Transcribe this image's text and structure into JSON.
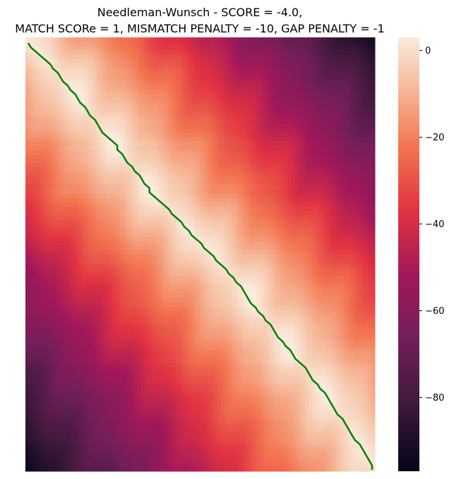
{
  "chart_data": {
    "type": "heatmap",
    "title": {
      "line1": "Needleman-Wunsch - SCORE = -4.0,",
      "line2": "MATCH SCORe = 1, MISMATCH PENALTY = -10, GAP PENALTY = -1"
    },
    "xlabel": "",
    "ylabel": "",
    "rows": 100,
    "cols": 100,
    "colorbar": {
      "range": [
        -97,
        3
      ],
      "ticks": [
        0,
        -20,
        -40,
        -60,
        -80
      ],
      "tick_labels": [
        "0",
        "−20",
        "−40",
        "−60",
        "−80"
      ],
      "colormap": "rocket"
    },
    "matrix_description_values": {
      "top_left": 3,
      "top_right": -97,
      "bottom_left": -97,
      "bottom_right": -4
    },
    "alignment_path": {
      "color": "#008000",
      "points": [
        [
          0,
          0
        ],
        [
          1,
          1
        ],
        [
          2,
          3
        ],
        [
          3,
          5
        ],
        [
          4,
          7
        ],
        [
          5,
          9
        ],
        [
          6,
          10
        ],
        [
          7,
          12
        ],
        [
          8,
          13
        ],
        [
          9,
          14
        ],
        [
          10,
          16
        ],
        [
          11,
          17
        ],
        [
          12,
          19
        ],
        [
          13,
          20
        ],
        [
          14,
          21
        ],
        [
          15,
          23
        ],
        [
          16,
          24
        ],
        [
          17,
          25
        ],
        [
          18,
          27
        ],
        [
          19,
          28
        ],
        [
          20,
          29
        ],
        [
          21,
          30
        ],
        [
          22,
          32
        ],
        [
          23,
          34
        ],
        [
          24,
          36
        ],
        [
          25,
          36
        ],
        [
          26,
          38
        ],
        [
          27,
          39
        ],
        [
          28,
          40
        ],
        [
          29,
          42
        ],
        [
          30,
          43
        ],
        [
          31,
          45
        ],
        [
          32,
          46
        ],
        [
          33,
          47
        ],
        [
          34,
          49
        ],
        [
          35,
          49
        ],
        [
          36,
          51
        ],
        [
          37,
          53
        ],
        [
          38,
          55
        ],
        [
          39,
          57
        ],
        [
          40,
          58
        ],
        [
          41,
          60
        ],
        [
          42,
          62
        ],
        [
          43,
          63
        ],
        [
          44,
          65
        ],
        [
          45,
          66
        ],
        [
          46,
          68
        ],
        [
          47,
          70
        ],
        [
          48,
          71
        ],
        [
          49,
          73
        ],
        [
          50,
          75
        ],
        [
          51,
          76
        ],
        [
          52,
          78
        ],
        [
          53,
          80
        ],
        [
          54,
          81
        ],
        [
          55,
          83
        ],
        [
          56,
          84
        ],
        [
          57,
          86
        ],
        [
          58,
          87
        ],
        [
          59,
          88
        ],
        [
          60,
          89
        ],
        [
          61,
          90
        ],
        [
          62,
          92
        ],
        [
          63,
          93
        ],
        [
          64,
          95
        ],
        [
          65,
          96
        ],
        [
          66,
          98
        ],
        [
          67,
          99
        ],
        [
          68,
          100
        ],
        [
          69,
          101
        ],
        [
          70,
          103
        ],
        [
          71,
          104
        ],
        [
          72,
          106
        ],
        [
          73,
          107
        ],
        [
          74,
          108
        ],
        [
          75,
          110
        ],
        [
          76,
          112
        ],
        [
          77,
          113
        ],
        [
          78,
          114
        ],
        [
          79,
          115
        ],
        [
          80,
          117
        ],
        [
          81,
          118
        ],
        [
          82,
          120
        ],
        [
          83,
          121
        ],
        [
          84,
          122
        ],
        [
          85,
          123
        ],
        [
          86,
          124
        ],
        [
          87,
          125
        ],
        [
          88,
          127
        ],
        [
          89,
          128
        ],
        [
          90,
          129
        ],
        [
          91,
          130
        ],
        [
          92,
          131
        ],
        [
          93,
          132
        ],
        [
          94,
          134
        ],
        [
          95,
          135
        ],
        [
          96,
          136
        ],
        [
          97,
          137
        ],
        [
          98,
          138
        ],
        [
          99,
          139
        ],
        [
          100,
          139
        ]
      ]
    }
  }
}
